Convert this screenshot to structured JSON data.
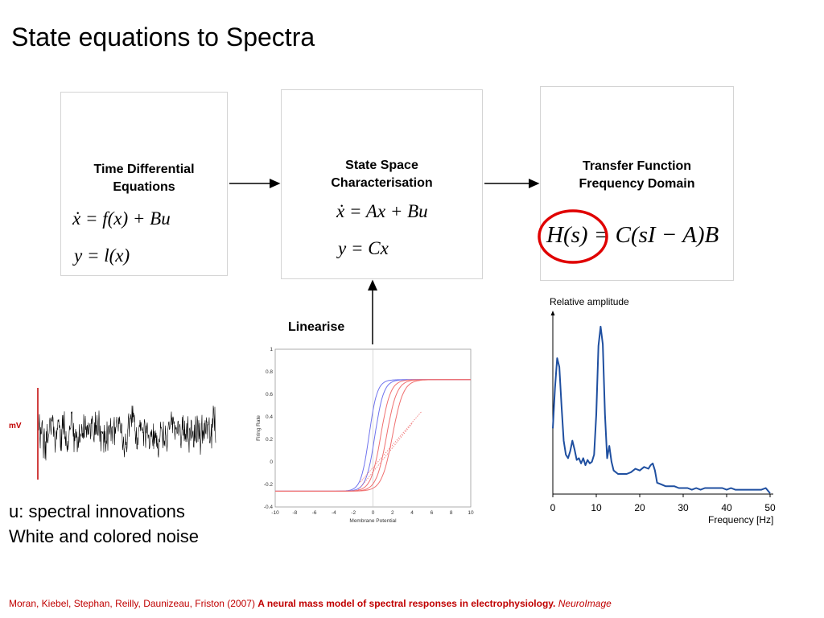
{
  "slide": {
    "title": "State equations to Spectra"
  },
  "boxes": {
    "time": {
      "title_line1": "Time Differential",
      "title_line2": "Equations",
      "eq1": "ẋ = f(x) + Bu",
      "eq2": "y = l(x)"
    },
    "state": {
      "title_line1": "State Space",
      "title_line2": "Characterisation",
      "eq1": "ẋ = Ax + Bu",
      "eq2": "y = Cx"
    },
    "transfer": {
      "title_line1": "Transfer Function",
      "title_line2": "Frequency Domain",
      "eq": "H(s) = C(sI − A)B",
      "highlight_color": "#e00000"
    }
  },
  "linearise_label": "Linearise",
  "noise": {
    "axis_label": "mV",
    "caption_line1": "u: spectral innovations",
    "caption_line2": "White and colored noise",
    "axis_color": "#c00000"
  },
  "sigmoid_chart": {
    "ylabel": "Firing Rate",
    "xlabel": "Membrane Potential",
    "xlim": [
      -10,
      10
    ],
    "ylim": [
      -0.4,
      1
    ],
    "xticks": [
      "-10",
      "-8",
      "-6",
      "-4",
      "-2",
      "0",
      "2",
      "4",
      "6",
      "8",
      "10"
    ],
    "yticks": [
      "-0.4",
      "-0.2",
      "0",
      "0.2",
      "0.4",
      "0.6",
      "0.8",
      "1"
    ],
    "colors": {
      "blue": "#6f73ee",
      "red": "#f07070"
    }
  },
  "chart_data": {
    "type": "line",
    "ylabel": "Relative amplitude",
    "xlabel": "Frequency [Hz]",
    "xlim": [
      0,
      50
    ],
    "xticks": [
      "0",
      "10",
      "20",
      "30",
      "40",
      "50"
    ],
    "grid": false,
    "color": "#1f4fa0",
    "series": [
      {
        "x": [
          0,
          0.5,
          1,
          1.5,
          2,
          2.5,
          3,
          3.5,
          4,
          4.5,
          5,
          5.5,
          6,
          6.5,
          7,
          7.5,
          8,
          8.5,
          9,
          9.5,
          10,
          10.5,
          11,
          11.5,
          12,
          12.5,
          13,
          13.5,
          14,
          15,
          16,
          17,
          18,
          19,
          20,
          21,
          22,
          22.5,
          23,
          23.5,
          24,
          25,
          26,
          27,
          28,
          29,
          30,
          31,
          32,
          33,
          34,
          35,
          36,
          37,
          38,
          39,
          40,
          41,
          42,
          43,
          44,
          45,
          46,
          47,
          48,
          49,
          50
        ],
        "values": [
          0.37,
          0.6,
          0.77,
          0.72,
          0.5,
          0.3,
          0.22,
          0.2,
          0.24,
          0.3,
          0.25,
          0.19,
          0.2,
          0.17,
          0.2,
          0.16,
          0.19,
          0.17,
          0.18,
          0.22,
          0.45,
          0.84,
          0.95,
          0.85,
          0.45,
          0.2,
          0.27,
          0.18,
          0.13,
          0.11,
          0.11,
          0.11,
          0.12,
          0.14,
          0.13,
          0.15,
          0.14,
          0.16,
          0.17,
          0.13,
          0.06,
          0.05,
          0.04,
          0.04,
          0.04,
          0.03,
          0.03,
          0.03,
          0.02,
          0.03,
          0.02,
          0.03,
          0.03,
          0.03,
          0.03,
          0.03,
          0.02,
          0.03,
          0.02,
          0.02,
          0.02,
          0.02,
          0.02,
          0.02,
          0.02,
          0.03,
          0.0
        ]
      }
    ]
  },
  "citation": {
    "authors": "Moran, Kiebel, Stephan, Reilly, Daunizeau, Friston (2007)",
    "title": "A neural mass model of spectral responses in electrophysiology.",
    "journal": "NeuroImage"
  }
}
